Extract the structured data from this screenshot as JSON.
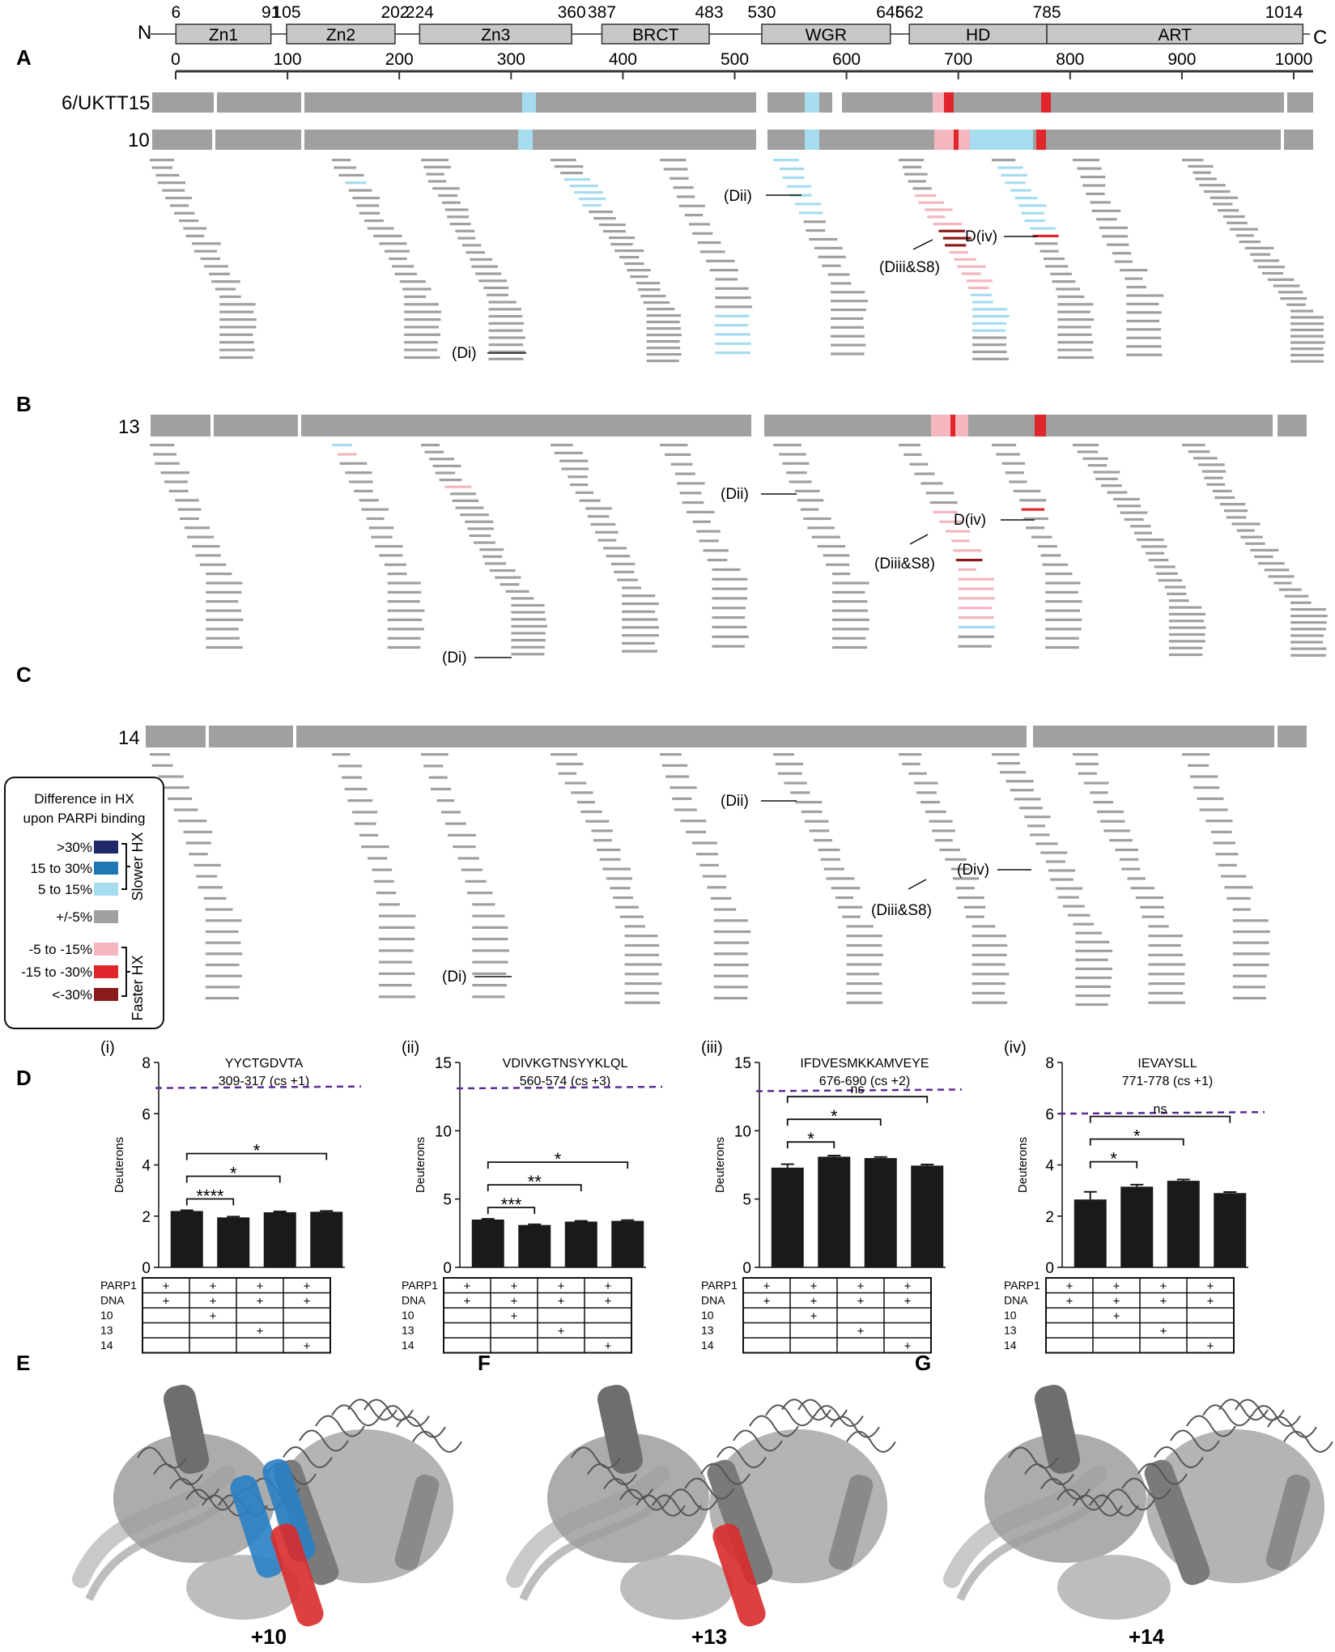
{
  "domain_track": {
    "n_label": "N",
    "c_label": "C",
    "domains": [
      {
        "label": "Zn1",
        "start": "6",
        "end": "91"
      },
      {
        "label": "Zn2",
        "start": "105",
        "end": "202"
      },
      {
        "label": "Zn3",
        "start": "224",
        "end": "360"
      },
      {
        "label": "BRCT",
        "start": "387",
        "end": "483"
      },
      {
        "label": "WGR",
        "start": "530",
        "end": "645"
      },
      {
        "label": "HD",
        "start": "662",
        "end": "785"
      },
      {
        "label": "ART",
        "start": "",
        "end": "1014"
      }
    ],
    "axis_ticks": [
      "0",
      "100",
      "200",
      "300",
      "400",
      "500",
      "600",
      "700",
      "800",
      "900",
      "1000"
    ]
  },
  "panels": [
    {
      "letter": "A",
      "rows": [
        "6/UKTT15",
        "10"
      ],
      "callouts": [
        "(Dii)",
        "D(iv)",
        "(Diii&S8)",
        "(Di)"
      ]
    },
    {
      "letter": "B",
      "rows": [
        "13"
      ],
      "callouts": [
        "(Dii)",
        "D(iv)",
        "(Diii&S8)",
        "(Di)"
      ]
    },
    {
      "letter": "C",
      "rows": [
        "14"
      ],
      "callouts": [
        "(Dii)",
        "(Div)",
        "(Diii&S8)",
        "(Di)"
      ]
    }
  ],
  "legend": {
    "title_line1": "Difference in HX",
    "title_line2": "upon PARPi binding",
    "slower_label": "Slower HX",
    "faster_label": "Faster HX",
    "items": [
      {
        "label": ">30%",
        "color": "#1f2a6b"
      },
      {
        "label": "15 to 30%",
        "color": "#1f78b4"
      },
      {
        "label": "5 to 15%",
        "color": "#a6dcef"
      },
      {
        "label": "+/-5%",
        "color": "#a0a0a0"
      },
      {
        "label": "-5 to -15%",
        "color": "#f4b6bf"
      },
      {
        "label": "-15 to -30%",
        "color": "#e0262b"
      },
      {
        "label": "<-30%",
        "color": "#8b1a1a"
      }
    ],
    "colors_note": {
      "gray": "#a0a0a0",
      "light_blue": "#a6dcef",
      "pink": "#f4b6bf",
      "red": "#e0262b",
      "dark_red": "#8b1a1a"
    }
  },
  "panel_D": {
    "letter": "D",
    "ylabel": "Deuterons",
    "table_rows": [
      "PARP1",
      "DNA",
      "10",
      "13",
      "14"
    ],
    "table_marks": [
      [
        "+",
        "+",
        "+",
        "+"
      ],
      [
        "+",
        "+",
        "+",
        "+"
      ],
      [
        "",
        "+",
        "",
        ""
      ],
      [
        "",
        "",
        "+",
        ""
      ],
      [
        "",
        "",
        "",
        "+"
      ]
    ]
  },
  "chart_data": [
    {
      "type": "bar",
      "title": "YYCTGDVTA",
      "subtitle": "309-317 (cs +1)",
      "panel": "(i)",
      "ylabel": "Deuterons",
      "ylim": [
        0,
        8
      ],
      "yticks": [
        0,
        2,
        4,
        6,
        8
      ],
      "reference_line": 7.0,
      "categories": [
        "PARP1+DNA",
        "PARP1+DNA+10",
        "PARP1+DNA+13",
        "PARP1+DNA+14"
      ],
      "values": [
        2.2,
        1.95,
        2.15,
        2.17
      ],
      "errors": [
        0.03,
        0.03,
        0.03,
        0.03
      ],
      "significance": [
        {
          "from": 0,
          "to": 1,
          "label": "****"
        },
        {
          "from": 0,
          "to": 2,
          "label": "*"
        },
        {
          "from": 0,
          "to": 3,
          "label": "*"
        }
      ]
    },
    {
      "type": "bar",
      "title": "VDIVKGTNSYYKLQL",
      "subtitle": "560-574 (cs +3)",
      "panel": "(ii)",
      "ylabel": "Deuterons",
      "ylim": [
        0,
        15
      ],
      "yticks": [
        0,
        5,
        10,
        15
      ],
      "reference_line": 13.1,
      "categories": [
        "PARP1+DNA",
        "PARP1+DNA+10",
        "PARP1+DNA+13",
        "PARP1+DNA+14"
      ],
      "values": [
        3.5,
        3.1,
        3.35,
        3.4
      ],
      "errors": [
        0.05,
        0.05,
        0.05,
        0.05
      ],
      "significance": [
        {
          "from": 0,
          "to": 1,
          "label": "***"
        },
        {
          "from": 0,
          "to": 2,
          "label": "**"
        },
        {
          "from": 0,
          "to": 3,
          "label": "*"
        }
      ]
    },
    {
      "type": "bar",
      "title": "IFDVESMKKAMVEYE",
      "subtitle": "676-690 (cs +2)",
      "panel": "(iii)",
      "ylabel": "Deuterons",
      "ylim": [
        0,
        15
      ],
      "yticks": [
        0,
        5,
        10,
        15
      ],
      "reference_line": 12.9,
      "categories": [
        "PARP1+DNA",
        "PARP1+DNA+10",
        "PARP1+DNA+13",
        "PARP1+DNA+14"
      ],
      "values": [
        7.3,
        8.1,
        8.0,
        7.45
      ],
      "errors": [
        0.25,
        0.08,
        0.08,
        0.08
      ],
      "significance": [
        {
          "from": 0,
          "to": 1,
          "label": "*"
        },
        {
          "from": 0,
          "to": 2,
          "label": "*"
        },
        {
          "from": 0,
          "to": 3,
          "label": "ns"
        }
      ]
    },
    {
      "type": "bar",
      "title": "IEVAYSLL",
      "subtitle": "771-778 (cs +1)",
      "panel": "(iv)",
      "ylabel": "Deuterons",
      "ylim": [
        0,
        8
      ],
      "yticks": [
        0,
        2,
        4,
        6,
        8
      ],
      "reference_line": 6.0,
      "categories": [
        "PARP1+DNA",
        "PARP1+DNA+10",
        "PARP1+DNA+13",
        "PARP1+DNA+14"
      ],
      "values": [
        2.65,
        3.15,
        3.38,
        2.9
      ],
      "errors": [
        0.3,
        0.08,
        0.05,
        0.04
      ],
      "significance": [
        {
          "from": 0,
          "to": 1,
          "label": "*"
        },
        {
          "from": 0,
          "to": 2,
          "label": "*"
        },
        {
          "from": 0,
          "to": 3,
          "label": "ns"
        }
      ]
    }
  ],
  "structures": [
    {
      "letter": "E",
      "caption": "+10"
    },
    {
      "letter": "F",
      "caption": "+13"
    },
    {
      "letter": "G",
      "caption": "+14"
    }
  ]
}
